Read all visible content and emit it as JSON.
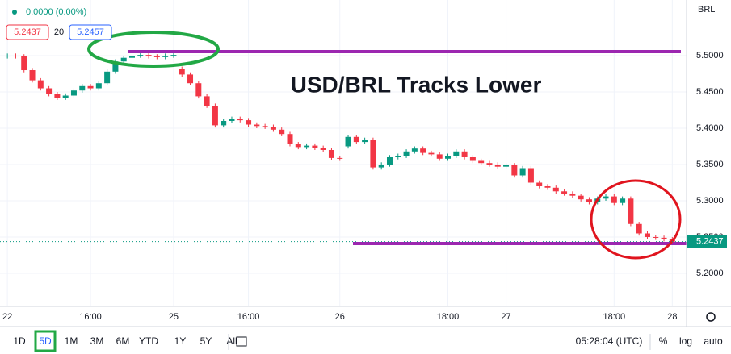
{
  "chart_data": {
    "type": "candlestick",
    "title": "USD/BRL Tracks Lower",
    "currency": "BRL",
    "categories": [
      "22",
      null,
      null,
      null,
      null,
      null,
      null,
      null,
      null,
      null,
      "16:00",
      null,
      null,
      null,
      null,
      null,
      null,
      null,
      null,
      null,
      "25",
      null,
      null,
      null,
      null,
      null,
      null,
      null,
      null,
      "16:00",
      null,
      null,
      null,
      null,
      null,
      null,
      null,
      null,
      null,
      null,
      "26",
      null,
      null,
      null,
      null,
      null,
      null,
      null,
      null,
      null,
      null,
      null,
      null,
      "18:00",
      null,
      null,
      null,
      null,
      null,
      null,
      "27",
      null,
      null,
      null,
      null,
      null,
      null,
      null,
      null,
      null,
      null,
      null,
      null,
      "18:00",
      null,
      null,
      null,
      null,
      null,
      null,
      "28"
    ],
    "open": [
      5.499,
      5.5,
      5.499,
      5.48,
      5.466,
      5.455,
      5.447,
      5.442,
      5.445,
      5.452,
      5.458,
      5.455,
      5.462,
      5.478,
      5.492,
      5.497,
      5.5,
      5.501,
      5.499,
      5.498,
      5.5,
      5.482,
      5.474,
      5.462,
      5.444,
      5.431,
      5.404,
      5.41,
      5.413,
      5.411,
      5.405,
      5.403,
      5.402,
      5.398,
      5.392,
      5.378,
      5.374,
      5.376,
      5.373,
      5.37,
      5.359,
      5.375,
      5.388,
      5.381,
      5.384,
      5.346,
      5.35,
      5.36,
      5.362,
      5.368,
      5.372,
      5.366,
      5.364,
      5.358,
      5.362,
      5.368,
      5.36,
      5.355,
      5.352,
      5.35,
      5.347,
      5.349,
      5.335,
      5.345,
      5.325,
      5.32,
      5.318,
      5.313,
      5.31,
      5.307,
      5.302,
      5.298,
      5.303,
      5.306,
      5.297,
      5.303,
      5.268,
      5.255,
      5.25,
      5.249,
      5.247
    ],
    "high": [
      5.503,
      5.503,
      5.502,
      5.483,
      5.469,
      5.458,
      5.45,
      5.448,
      5.455,
      5.461,
      5.461,
      5.465,
      5.481,
      5.495,
      5.5,
      5.503,
      5.504,
      5.504,
      5.502,
      5.503,
      5.504,
      5.485,
      5.477,
      5.465,
      5.447,
      5.434,
      5.413,
      5.416,
      5.416,
      5.414,
      5.408,
      5.406,
      5.405,
      5.401,
      5.395,
      5.381,
      5.379,
      5.379,
      5.376,
      5.373,
      5.362,
      5.391,
      5.391,
      5.387,
      5.387,
      5.353,
      5.363,
      5.365,
      5.371,
      5.375,
      5.375,
      5.369,
      5.367,
      5.365,
      5.371,
      5.371,
      5.363,
      5.358,
      5.355,
      5.353,
      5.352,
      5.352,
      5.348,
      5.348,
      5.328,
      5.323,
      5.321,
      5.316,
      5.313,
      5.31,
      5.305,
      5.306,
      5.309,
      5.309,
      5.306,
      5.306,
      5.271,
      5.258,
      5.253,
      5.252,
      5.25
    ],
    "low": [
      5.496,
      5.496,
      5.477,
      5.463,
      5.452,
      5.444,
      5.439,
      5.439,
      5.442,
      5.449,
      5.452,
      5.452,
      5.459,
      5.475,
      5.489,
      5.494,
      5.497,
      5.496,
      5.495,
      5.495,
      5.497,
      5.471,
      5.459,
      5.441,
      5.428,
      5.401,
      5.401,
      5.407,
      5.408,
      5.402,
      5.4,
      5.399,
      5.395,
      5.389,
      5.375,
      5.371,
      5.371,
      5.37,
      5.367,
      5.356,
      5.355,
      5.372,
      5.378,
      5.378,
      5.343,
      5.343,
      5.347,
      5.357,
      5.359,
      5.365,
      5.363,
      5.361,
      5.355,
      5.355,
      5.359,
      5.357,
      5.352,
      5.349,
      5.347,
      5.344,
      5.344,
      5.332,
      5.332,
      5.322,
      5.317,
      5.315,
      5.31,
      5.307,
      5.304,
      5.299,
      5.295,
      5.295,
      5.3,
      5.294,
      5.294,
      5.265,
      5.252,
      5.247,
      5.246,
      5.244,
      5.2407
    ],
    "close": [
      5.5,
      5.499,
      5.48,
      5.466,
      5.455,
      5.447,
      5.442,
      5.445,
      5.452,
      5.458,
      5.455,
      5.462,
      5.478,
      5.492,
      5.497,
      5.5,
      5.501,
      5.499,
      5.498,
      5.5,
      5.501,
      5.474,
      5.462,
      5.444,
      5.431,
      5.404,
      5.41,
      5.413,
      5.411,
      5.405,
      5.403,
      5.402,
      5.398,
      5.392,
      5.378,
      5.374,
      5.376,
      5.373,
      5.37,
      5.359,
      5.358,
      5.388,
      5.381,
      5.384,
      5.346,
      5.35,
      5.36,
      5.362,
      5.368,
      5.372,
      5.366,
      5.364,
      5.358,
      5.362,
      5.368,
      5.36,
      5.355,
      5.352,
      5.35,
      5.347,
      5.349,
      5.335,
      5.345,
      5.325,
      5.32,
      5.318,
      5.313,
      5.31,
      5.307,
      5.302,
      5.298,
      5.303,
      5.306,
      5.297,
      5.303,
      5.268,
      5.255,
      5.25,
      5.249,
      5.247,
      5.2437
    ],
    "up_color": "#089981",
    "down_color": "#f23645",
    "ylim": [
      5.1544,
      5.5767
    ],
    "yticks": [
      {
        "value": 5.5,
        "label": "5.5000"
      },
      {
        "value": 5.45,
        "label": "5.4500"
      },
      {
        "value": 5.4,
        "label": "5.4000"
      },
      {
        "value": 5.35,
        "label": "5.3500"
      },
      {
        "value": 5.3,
        "label": "5.3000"
      },
      {
        "value": 5.25,
        "label": "5.2500"
      },
      {
        "value": 5.2,
        "label": "5.2000"
      }
    ],
    "grid": true
  },
  "legend_bar": {
    "change": "0.0000 (0.00%)",
    "bid": "5.2437",
    "spread": "20",
    "ask": "5.2457"
  },
  "toolbar": {
    "ranges": [
      "1D",
      "5D",
      "1M",
      "3M",
      "6M",
      "YTD",
      "1Y",
      "5Y",
      "All"
    ],
    "time": "05:28:04 (UTC)",
    "percent": "%",
    "log": "log",
    "auto": "auto"
  }
}
